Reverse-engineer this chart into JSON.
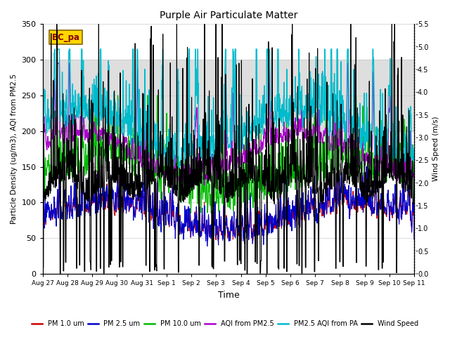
{
  "title": "Purple Air Particulate Matter",
  "xlabel": "Time",
  "ylabel_left": "Particle Density (ug/m3), AQI from PM2.5",
  "ylabel_right": "Wind Speed (m/s)",
  "annotation_text": "BC_pa",
  "annotation_color": "#8B0000",
  "annotation_bg": "#FFD700",
  "ylim_left": [
    0,
    350
  ],
  "ylim_right": [
    0.0,
    5.5
  ],
  "yticks_left": [
    0,
    50,
    100,
    150,
    200,
    250,
    300,
    350
  ],
  "yticks_right": [
    0.0,
    0.5,
    1.0,
    1.5,
    2.0,
    2.5,
    3.0,
    3.5,
    4.0,
    4.5,
    5.0,
    5.5
  ],
  "shade_band": [
    200,
    300
  ],
  "shade_color": "#d0d0d0",
  "x_tick_labels": [
    "Aug 27",
    "Aug 28",
    "Aug 29",
    "Aug 30",
    "Aug 31",
    "Sep 1",
    "Sep 2",
    "Sep 3",
    "Sep 4",
    "Sep 5",
    "Sep 6",
    "Sep 7",
    "Sep 8",
    "Sep 9",
    "Sep 10",
    "Sep 11"
  ],
  "series": {
    "pm1": {
      "color": "#cc0000",
      "label": "PM 1.0 um",
      "lw": 0.8
    },
    "pm25": {
      "color": "#0000cc",
      "label": "PM 2.5 um",
      "lw": 0.8
    },
    "pm10": {
      "color": "#00bb00",
      "label": "PM 10.0 um",
      "lw": 0.9
    },
    "aqi_pm25": {
      "color": "#aa00cc",
      "label": "AQI from PM2.5",
      "lw": 1.0
    },
    "aqi_pa": {
      "color": "#00bbcc",
      "label": "PM2.5 AQI from PA",
      "lw": 1.0
    },
    "wind": {
      "color": "#000000",
      "label": "Wind Speed",
      "lw": 0.8
    }
  },
  "n_points": 1500,
  "seed": 7
}
